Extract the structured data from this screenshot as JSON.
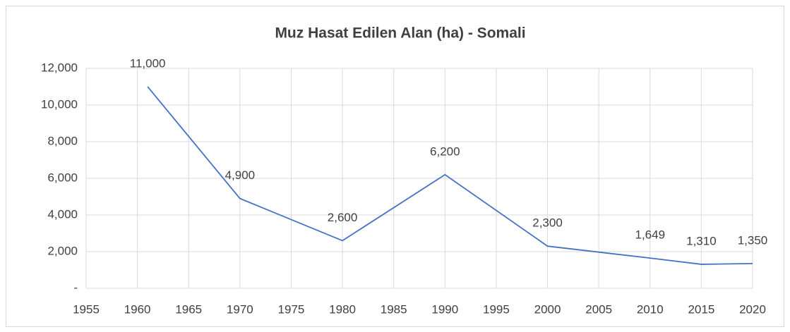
{
  "chart_data": {
    "type": "line",
    "title": "Muz Hasat Edilen Alan (ha) - Somali",
    "x": [
      1961,
      1970,
      1980,
      1990,
      2000,
      2010,
      2015,
      2020
    ],
    "series": [
      {
        "name": "Muz Hasat Edilen Alan (ha)",
        "color": "#4472c4",
        "values": [
          11000,
          4900,
          2600,
          6200,
          2300,
          1649,
          1310,
          1350
        ],
        "value_labels": [
          "11,000",
          "4,900",
          "2,600",
          "6,200",
          "2,300",
          "1,649",
          "1,310",
          "1,350"
        ]
      }
    ],
    "xlim": [
      1955,
      2020
    ],
    "xticks": [
      1955,
      1960,
      1965,
      1970,
      1975,
      1980,
      1985,
      1990,
      1995,
      2000,
      2005,
      2010,
      2015,
      2020
    ],
    "ylim": [
      0,
      12000
    ],
    "yticks": [
      {
        "value": 0,
        "label": "-"
      },
      {
        "value": 2000,
        "label": "2,000"
      },
      {
        "value": 4000,
        "label": "4,000"
      },
      {
        "value": 6000,
        "label": "6,000"
      },
      {
        "value": 8000,
        "label": "8,000"
      },
      {
        "value": 10000,
        "label": "10,000"
      },
      {
        "value": 12000,
        "label": "12,000"
      }
    ],
    "grid": true
  }
}
